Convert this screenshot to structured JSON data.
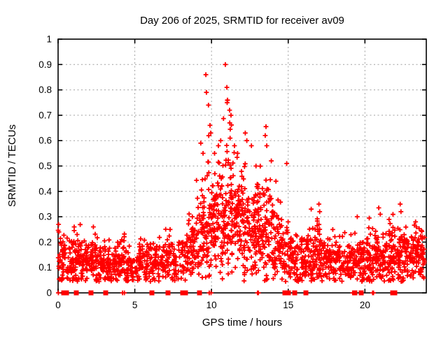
{
  "chart_data": {
    "type": "scatter",
    "title": "Day 206 of 2025, SRMTID for receiver av09",
    "xlabel": "GPS time / hours",
    "ylabel": "SRMTID / TECUs",
    "xlim": [
      0,
      24
    ],
    "ylim": [
      0,
      1
    ],
    "xticks": [
      0,
      5,
      10,
      15,
      20
    ],
    "yticks": [
      0,
      0.1,
      0.2,
      0.3,
      0.4,
      0.5,
      0.6,
      0.7,
      0.8,
      0.9,
      1
    ],
    "grid": true,
    "legend": "none",
    "marker": "plus",
    "marker_color": "#ff0000",
    "grid_color": "#a0a0a0",
    "border_color": "#000000",
    "seed": 7,
    "point_bins": [
      [
        0.0,
        0.5,
        45,
        0.13,
        0.05,
        0.28
      ],
      [
        0.5,
        1.0,
        40,
        0.12,
        0.045,
        0.25
      ],
      [
        1.0,
        1.5,
        45,
        0.14,
        0.05,
        0.27
      ],
      [
        1.5,
        2.0,
        42,
        0.13,
        0.05,
        0.26
      ],
      [
        2.0,
        2.5,
        45,
        0.13,
        0.05,
        0.27
      ],
      [
        2.5,
        3.0,
        40,
        0.12,
        0.045,
        0.24
      ],
      [
        3.0,
        3.5,
        42,
        0.12,
        0.045,
        0.25
      ],
      [
        3.5,
        4.0,
        38,
        0.115,
        0.04,
        0.22
      ],
      [
        4.0,
        4.5,
        40,
        0.12,
        0.045,
        0.24
      ],
      [
        4.5,
        5.0,
        36,
        0.11,
        0.04,
        0.21
      ],
      [
        5.0,
        5.5,
        38,
        0.115,
        0.04,
        0.22
      ],
      [
        5.5,
        6.0,
        36,
        0.11,
        0.04,
        0.21
      ],
      [
        6.0,
        6.5,
        40,
        0.12,
        0.045,
        0.24
      ],
      [
        6.5,
        7.0,
        36,
        0.115,
        0.04,
        0.22
      ],
      [
        7.0,
        7.5,
        34,
        0.13,
        0.05,
        0.26
      ],
      [
        7.5,
        8.0,
        30,
        0.12,
        0.045,
        0.22
      ],
      [
        8.0,
        8.5,
        40,
        0.15,
        0.05,
        0.27
      ],
      [
        8.5,
        9.0,
        45,
        0.18,
        0.06,
        0.32
      ],
      [
        9.0,
        9.5,
        50,
        0.23,
        0.08,
        0.45
      ],
      [
        9.5,
        10.0,
        55,
        0.28,
        0.11,
        0.72
      ],
      [
        10.0,
        10.5,
        60,
        0.3,
        0.1,
        0.6
      ],
      [
        10.5,
        11.0,
        60,
        0.32,
        0.12,
        0.78
      ],
      [
        11.0,
        11.5,
        60,
        0.32,
        0.13,
        0.82
      ],
      [
        11.5,
        12.0,
        55,
        0.28,
        0.1,
        0.6
      ],
      [
        12.0,
        12.5,
        55,
        0.27,
        0.1,
        0.62
      ],
      [
        12.5,
        13.0,
        55,
        0.26,
        0.09,
        0.55
      ],
      [
        13.0,
        13.5,
        55,
        0.26,
        0.1,
        0.6
      ],
      [
        13.5,
        14.0,
        50,
        0.25,
        0.1,
        0.62
      ],
      [
        14.0,
        14.5,
        45,
        0.2,
        0.08,
        0.45
      ],
      [
        14.5,
        15.0,
        40,
        0.165,
        0.06,
        0.38
      ],
      [
        15.0,
        15.5,
        40,
        0.14,
        0.05,
        0.3
      ],
      [
        15.5,
        16.0,
        38,
        0.13,
        0.05,
        0.28
      ],
      [
        16.0,
        16.5,
        42,
        0.14,
        0.055,
        0.3
      ],
      [
        16.5,
        17.0,
        45,
        0.15,
        0.06,
        0.33
      ],
      [
        17.0,
        17.5,
        42,
        0.14,
        0.055,
        0.32
      ],
      [
        17.5,
        18.0,
        40,
        0.13,
        0.05,
        0.28
      ],
      [
        18.0,
        18.5,
        40,
        0.13,
        0.045,
        0.26
      ],
      [
        18.5,
        19.0,
        36,
        0.12,
        0.045,
        0.24
      ],
      [
        19.0,
        19.5,
        38,
        0.12,
        0.045,
        0.26
      ],
      [
        19.5,
        20.0,
        42,
        0.13,
        0.05,
        0.28
      ],
      [
        20.0,
        20.5,
        45,
        0.14,
        0.055,
        0.3
      ],
      [
        20.5,
        21.0,
        45,
        0.14,
        0.055,
        0.32
      ],
      [
        21.0,
        21.5,
        42,
        0.13,
        0.05,
        0.28
      ],
      [
        21.5,
        22.0,
        48,
        0.15,
        0.06,
        0.33
      ],
      [
        22.0,
        22.5,
        45,
        0.14,
        0.055,
        0.3
      ],
      [
        22.5,
        23.0,
        42,
        0.15,
        0.055,
        0.28
      ],
      [
        23.0,
        23.5,
        45,
        0.14,
        0.05,
        0.27
      ],
      [
        23.5,
        23.9,
        40,
        0.14,
        0.05,
        0.26
      ]
    ],
    "outlier_points": [
      [
        0.03,
        0.27
      ],
      [
        0.05,
        0.24
      ],
      [
        1.05,
        0.26
      ],
      [
        2.3,
        0.26
      ],
      [
        7.3,
        0.25
      ],
      [
        8.75,
        0.3
      ],
      [
        9.3,
        0.59
      ],
      [
        9.45,
        0.55
      ],
      [
        9.63,
        0.86
      ],
      [
        9.67,
        0.79
      ],
      [
        9.8,
        0.74
      ],
      [
        9.9,
        0.66
      ],
      [
        9.95,
        0.63
      ],
      [
        10.2,
        0.55
      ],
      [
        10.45,
        0.58
      ],
      [
        10.6,
        0.6
      ],
      [
        10.9,
        0.9
      ],
      [
        11.0,
        0.81
      ],
      [
        11.02,
        0.75
      ],
      [
        11.18,
        0.72
      ],
      [
        11.27,
        0.7
      ],
      [
        11.19,
        0.67
      ],
      [
        11.22,
        0.645
      ],
      [
        11.21,
        0.61
      ],
      [
        11.5,
        0.58
      ],
      [
        11.7,
        0.55
      ],
      [
        12.2,
        0.63
      ],
      [
        12.3,
        0.6
      ],
      [
        12.6,
        0.58
      ],
      [
        12.9,
        0.5
      ],
      [
        13.5,
        0.62
      ],
      [
        13.55,
        0.655
      ],
      [
        13.6,
        0.58
      ],
      [
        13.9,
        0.52
      ],
      [
        14.2,
        0.44
      ],
      [
        14.9,
        0.51
      ],
      [
        16.5,
        0.33
      ],
      [
        17.0,
        0.35
      ],
      [
        17.05,
        0.32
      ],
      [
        19.5,
        0.3
      ],
      [
        20.9,
        0.335
      ],
      [
        21.0,
        0.31
      ],
      [
        22.3,
        0.35
      ],
      [
        22.35,
        0.32
      ],
      [
        23.3,
        0.28
      ],
      [
        23.35,
        0.26
      ]
    ],
    "zero_axis_squares_hours": [
      0.35,
      0.55,
      1.2,
      2.15,
      3.1,
      6.1,
      7.15,
      8.1,
      8.3,
      9.2,
      14.8,
      15.0,
      15.4,
      16.15,
      19.35,
      19.75,
      21.8,
      21.95
    ],
    "zero_axis_plus_hours": [
      0.02,
      4.2,
      4.32,
      9.85,
      9.97,
      13.0,
      13.06,
      19.2,
      19.28,
      20.5,
      20.56
    ]
  }
}
